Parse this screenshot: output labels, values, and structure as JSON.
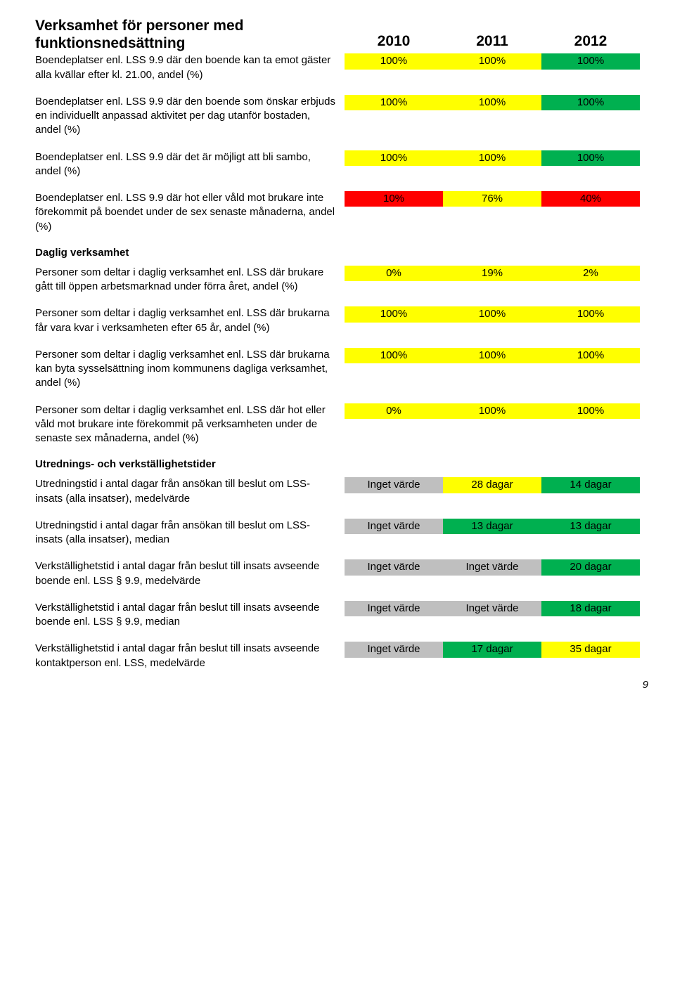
{
  "colors": {
    "green": "#00b050",
    "yellow": "#ffff00",
    "red": "#ff0000",
    "gray": "#bfbfbf"
  },
  "header": {
    "title_line1": "Verksamhet för personer med",
    "title_line2": "funktionsnedsättning",
    "years": [
      "2010",
      "2011",
      "2012"
    ]
  },
  "rows": [
    {
      "label": "Boendeplatser enl. LSS 9.9 där den boende kan ta emot gäster alla kvällar efter kl. 21.00, andel (%)",
      "cells": [
        {
          "text": "100%",
          "color": "yellow"
        },
        {
          "text": "100%",
          "color": "yellow"
        },
        {
          "text": "100%",
          "color": "green"
        }
      ]
    },
    {
      "label": "Boendeplatser enl. LSS 9.9 där den boende som önskar erbjuds en individuellt anpassad aktivitet per dag utanför bostaden, andel (%)",
      "cells": [
        {
          "text": "100%",
          "color": "yellow"
        },
        {
          "text": "100%",
          "color": "yellow"
        },
        {
          "text": "100%",
          "color": "green"
        }
      ]
    },
    {
      "label": "Boendeplatser enl. LSS 9.9 där det är möjligt att bli sambo, andel (%)",
      "cells": [
        {
          "text": "100%",
          "color": "yellow"
        },
        {
          "text": "100%",
          "color": "yellow"
        },
        {
          "text": "100%",
          "color": "green"
        }
      ]
    },
    {
      "label": "Boendeplatser enl. LSS 9.9 där hot eller våld mot brukare inte förekommit på boendet under de sex senaste månaderna, andel (%)",
      "cells": [
        {
          "text": "10%",
          "color": "red"
        },
        {
          "text": "76%",
          "color": "yellow"
        },
        {
          "text": "40%",
          "color": "red"
        }
      ]
    }
  ],
  "section2": {
    "heading": "Daglig verksamhet",
    "rows": [
      {
        "label": "Personer som deltar i daglig verksamhet enl. LSS där brukare gått till öppen arbetsmarknad under förra året, andel (%)",
        "cells": [
          {
            "text": "0%",
            "color": "yellow"
          },
          {
            "text": "19%",
            "color": "yellow"
          },
          {
            "text": "2%",
            "color": "yellow"
          }
        ]
      },
      {
        "label": "Personer som deltar i daglig verksamhet enl. LSS där brukarna får vara kvar i verksamheten efter 65 år, andel (%)",
        "cells": [
          {
            "text": "100%",
            "color": "yellow"
          },
          {
            "text": "100%",
            "color": "yellow"
          },
          {
            "text": "100%",
            "color": "yellow"
          }
        ]
      },
      {
        "label": "Personer som deltar i daglig verksamhet enl. LSS där brukarna kan byta sysselsättning inom kommunens dagliga verksamhet, andel (%)",
        "cells": [
          {
            "text": "100%",
            "color": "yellow"
          },
          {
            "text": "100%",
            "color": "yellow"
          },
          {
            "text": "100%",
            "color": "yellow"
          }
        ]
      },
      {
        "label": "Personer som deltar i daglig verksamhet enl. LSS där hot eller våld mot brukare inte förekommit på verksamheten under de senaste sex månaderna, andel (%)",
        "cells": [
          {
            "text": "0%",
            "color": "yellow"
          },
          {
            "text": "100%",
            "color": "yellow"
          },
          {
            "text": "100%",
            "color": "yellow"
          }
        ]
      }
    ]
  },
  "section3": {
    "heading": "Utrednings- och verkställighetstider",
    "rows": [
      {
        "label": "Utredningstid i antal dagar från ansökan till beslut om LSS-insats (alla insatser), medelvärde",
        "cells": [
          {
            "text": "Inget värde",
            "color": "gray"
          },
          {
            "text": "28 dagar",
            "color": "yellow"
          },
          {
            "text": "14 dagar",
            "color": "green"
          }
        ]
      },
      {
        "label": "Utredningstid i antal dagar från ansökan till beslut om LSS-insats (alla insatser), median",
        "cells": [
          {
            "text": "Inget värde",
            "color": "gray"
          },
          {
            "text": "13 dagar",
            "color": "green"
          },
          {
            "text": "13 dagar",
            "color": "green"
          }
        ]
      },
      {
        "label": "Verkställighetstid i antal dagar från beslut till insats avseende boende enl. LSS § 9.9, medelvärde",
        "cells": [
          {
            "text": "Inget värde",
            "color": "gray"
          },
          {
            "text": "Inget värde",
            "color": "gray"
          },
          {
            "text": "20 dagar",
            "color": "green"
          }
        ]
      },
      {
        "label": "Verkställighetstid i antal dagar från beslut till insats avseende boende enl. LSS § 9.9, median",
        "cells": [
          {
            "text": "Inget värde",
            "color": "gray"
          },
          {
            "text": "Inget värde",
            "color": "gray"
          },
          {
            "text": "18 dagar",
            "color": "green"
          }
        ]
      },
      {
        "label": "Verkställighetstid i antal dagar från beslut till insats avseende kontaktperson enl. LSS, medelvärde",
        "cells": [
          {
            "text": "Inget värde",
            "color": "gray"
          },
          {
            "text": "17 dagar",
            "color": "green"
          },
          {
            "text": "35 dagar",
            "color": "yellow"
          }
        ]
      }
    ]
  },
  "page_number": "9"
}
